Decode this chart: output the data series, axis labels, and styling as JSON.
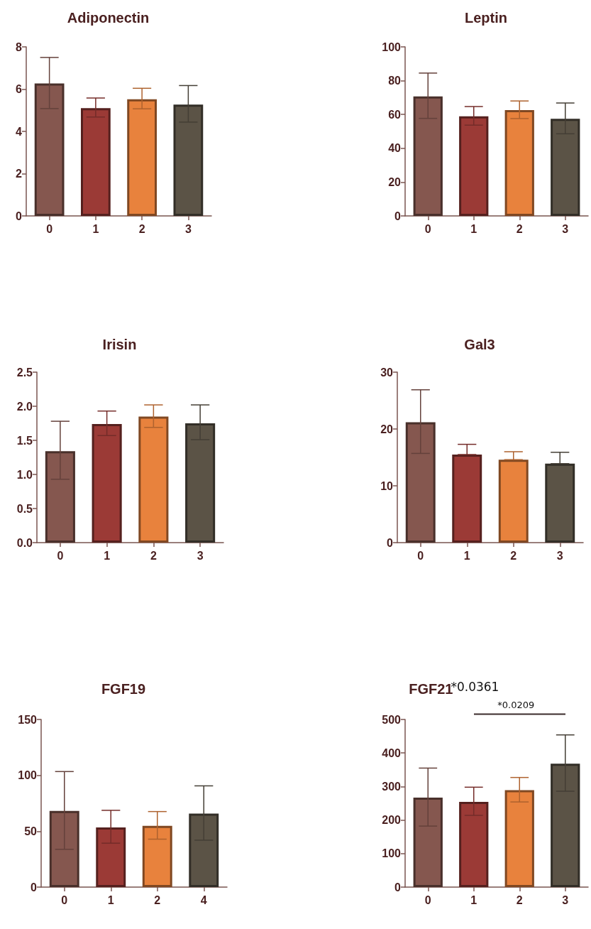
{
  "chart_data": [
    {
      "type": "bar",
      "title": "Adiponectin",
      "categories": [
        "0",
        "1",
        "2",
        "3"
      ],
      "values": [
        6.27,
        5.1,
        5.52,
        5.27
      ],
      "colors": [
        "#85574f",
        "#9b3a36",
        "#e8823d",
        "#5b5346"
      ],
      "errors": [
        [
          5.08,
          7.5
        ],
        [
          4.68,
          5.58
        ],
        [
          5.07,
          6.04
        ],
        [
          4.44,
          6.17
        ]
      ],
      "ylim": [
        0,
        8
      ],
      "yticks": [
        0,
        2,
        4,
        6,
        8
      ]
    },
    {
      "type": "bar",
      "title": "Leptin",
      "categories": [
        "0",
        "1",
        "2",
        "3"
      ],
      "values": [
        70.7,
        58.9,
        62.6,
        57.5
      ],
      "colors": [
        "#85574f",
        "#9b3a36",
        "#e8823d",
        "#5b5346"
      ],
      "errors": [
        [
          57.7,
          84.5
        ],
        [
          53.7,
          64.7
        ],
        [
          57.6,
          68
        ],
        [
          48.6,
          66.8
        ]
      ],
      "ylim": [
        0,
        100
      ],
      "yticks": [
        0,
        20,
        40,
        60,
        80,
        100
      ]
    },
    {
      "type": "bar",
      "title": "Irisin",
      "categories": [
        "0",
        "1",
        "2",
        "3"
      ],
      "values": [
        1.34,
        1.74,
        1.85,
        1.75
      ],
      "colors": [
        "#85574f",
        "#9b3a36",
        "#e8823d",
        "#5b5346"
      ],
      "errors": [
        [
          0.93,
          1.78
        ],
        [
          1.57,
          1.93
        ],
        [
          1.69,
          2.02
        ],
        [
          1.51,
          2.02
        ]
      ],
      "ylim": [
        0,
        2.5
      ],
      "yticks": [
        {
          "value": 0,
          "label": "0.0"
        },
        {
          "value": 0.5,
          "label": "0.5"
        },
        {
          "value": 1,
          "label": "1.0"
        },
        {
          "value": 1.5,
          "label": "1.5"
        },
        {
          "value": 2,
          "label": "2.0"
        },
        {
          "value": 2.5,
          "label": "2.5"
        }
      ]
    },
    {
      "type": "bar",
      "title": "Gal3",
      "categories": [
        "0",
        "1",
        "2",
        "3"
      ],
      "values": [
        21.2,
        15.5,
        14.6,
        13.9
      ],
      "colors": [
        "#85574f",
        "#9b3a36",
        "#e8823d",
        "#5b5346"
      ],
      "errors": [
        [
          15.7,
          26.9
        ],
        [
          15.5,
          17.3
        ],
        [
          14.6,
          16
        ],
        [
          13.9,
          15.9
        ]
      ],
      "ylim": [
        0,
        30
      ],
      "yticks": [
        0,
        10,
        20,
        30
      ]
    },
    {
      "type": "bar",
      "title": "FGF19",
      "categories": [
        "0",
        "1",
        "2",
        "4"
      ],
      "values": [
        68.1,
        53.4,
        54.8,
        65.8
      ],
      "colors": [
        "#85574f",
        "#9b3a36",
        "#e8823d",
        "#5b5346"
      ],
      "errors": [
        [
          33.8,
          103.4
        ],
        [
          39.3,
          68.7
        ],
        [
          42.9,
          67.6
        ],
        [
          42,
          90.6
        ]
      ],
      "ylim": [
        0,
        150
      ],
      "yticks": [
        0,
        50,
        100,
        150
      ]
    },
    {
      "type": "bar",
      "title": "FGF21",
      "categories": [
        "0",
        "1",
        "2",
        "3"
      ],
      "values": [
        267,
        254,
        289,
        368
      ],
      "colors": [
        "#85574f",
        "#9b3a36",
        "#e8823d",
        "#5b5346"
      ],
      "errors": [
        [
          182,
          355
        ],
        [
          214,
          298
        ],
        [
          254,
          327
        ],
        [
          286,
          454
        ]
      ],
      "ylim": [
        0,
        500
      ],
      "yticks": [
        0,
        100,
        200,
        300,
        400,
        500
      ],
      "annotations": [
        "*0.0361",
        "*0.0209"
      ]
    }
  ]
}
